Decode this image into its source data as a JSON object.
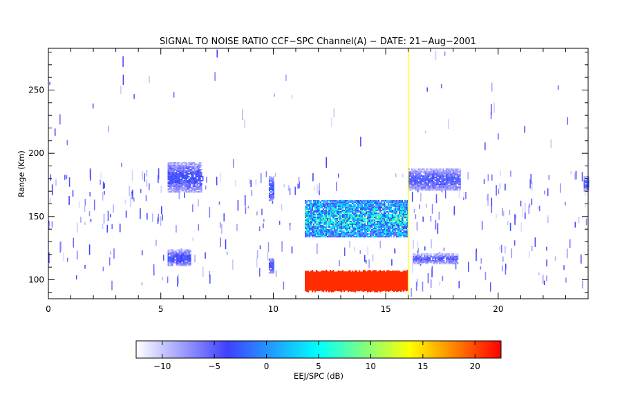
{
  "chart_data": {
    "type": "heatmap",
    "title": "SIGNAL TO NOISE RATIO CCF−SPC Channel(A) − DATE: 21−Aug−2001",
    "xlabel": "",
    "ylabel": "Range (Km)",
    "xlim": [
      0,
      24
    ],
    "ylim": [
      85,
      283
    ],
    "x_ticks": [
      0,
      5,
      10,
      15,
      20
    ],
    "y_ticks": [
      100,
      150,
      200,
      250
    ],
    "grid": false,
    "colorbar": {
      "label": "EEJ/SPC (dB)",
      "range": [
        -12.5,
        22.5
      ],
      "ticks": [
        -10,
        -5,
        0,
        5,
        10,
        15,
        20
      ],
      "colors": [
        "#ffffff",
        "#4040ff",
        "#00ffff",
        "#ffff00",
        "#ff0000"
      ]
    },
    "regions": [
      {
        "x": [
          5.3,
          6.8
        ],
        "y": [
          170,
          193
        ],
        "snr": -3
      },
      {
        "x": [
          5.3,
          6.3
        ],
        "y": [
          111,
          124
        ],
        "snr": -3
      },
      {
        "x": [
          9.8,
          10.0
        ],
        "y": [
          163,
          182
        ],
        "snr": -2
      },
      {
        "x": [
          9.8,
          10.0
        ],
        "y": [
          106,
          117
        ],
        "snr": -2
      },
      {
        "x": [
          11.4,
          16.0
        ],
        "y": [
          134,
          163
        ],
        "snr": 4
      },
      {
        "x": [
          11.4,
          16.0
        ],
        "y": [
          90,
          108
        ],
        "snr": 21
      },
      {
        "x": [
          16.0,
          18.3
        ],
        "y": [
          171,
          188
        ],
        "snr": -3
      },
      {
        "x": [
          16.2,
          18.2
        ],
        "y": [
          113,
          121
        ],
        "snr": -4
      },
      {
        "x": [
          23.8,
          24.0
        ],
        "y": [
          171,
          182
        ],
        "snr": -3
      }
    ],
    "annotations": [
      {
        "type": "vertical_line",
        "x": 16.0,
        "color": "#ffff00"
      }
    ]
  }
}
